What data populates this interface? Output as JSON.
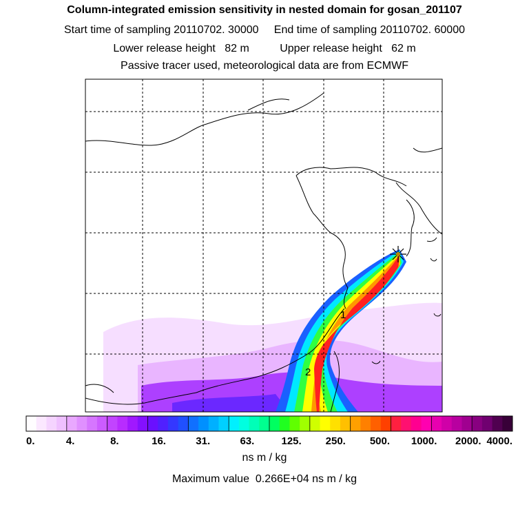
{
  "header": {
    "title": "Column-integrated emission sensitivity in nested domain for gosan_201107",
    "line2": "Start time of sampling 20110702. 30000     End time of sampling 20110702. 60000",
    "line3": "Lower release height   82 m          Upper release height   62 m",
    "line4": "Passive tracer used, meteorological data are from ECMWF"
  },
  "map": {
    "marker_icon": "star-marker-icon",
    "markers": [
      {
        "label": "1"
      },
      {
        "label": "2"
      }
    ]
  },
  "colorbar": {
    "tick_labels": [
      "0.",
      "4.",
      "8.",
      "16.",
      "31.",
      "63.",
      "125.",
      "250.",
      "500.",
      "1000.",
      "2000.",
      "4000."
    ],
    "colors": [
      "#fffdff",
      "#fbe8ff",
      "#f5d4ff",
      "#efc0ff",
      "#e9a8ff",
      "#e090ff",
      "#d676ff",
      "#cc5cff",
      "#c244ff",
      "#b82cff",
      "#a018ff",
      "#8410ff",
      "#6a10ff",
      "#5020ff",
      "#3438ff",
      "#2050ff",
      "#1070ff",
      "#0090ff",
      "#00b0ff",
      "#00d0ff",
      "#00f0ff",
      "#00ffe0",
      "#00ffb8",
      "#00ff90",
      "#00ff60",
      "#20ff20",
      "#60ff00",
      "#a0ff00",
      "#d0ff00",
      "#ffff00",
      "#ffe000",
      "#ffc000",
      "#ffa000",
      "#ff8000",
      "#ff6000",
      "#ff4000",
      "#ff2040",
      "#ff1070",
      "#ff0090",
      "#ff00b0",
      "#e800b0",
      "#d000a8",
      "#b800a0",
      "#a00090",
      "#880080",
      "#700070",
      "#500050",
      "#380038"
    ]
  },
  "units": "ns m / kg",
  "max_value": "Maximum value  0.266E+04 ns m / kg"
}
